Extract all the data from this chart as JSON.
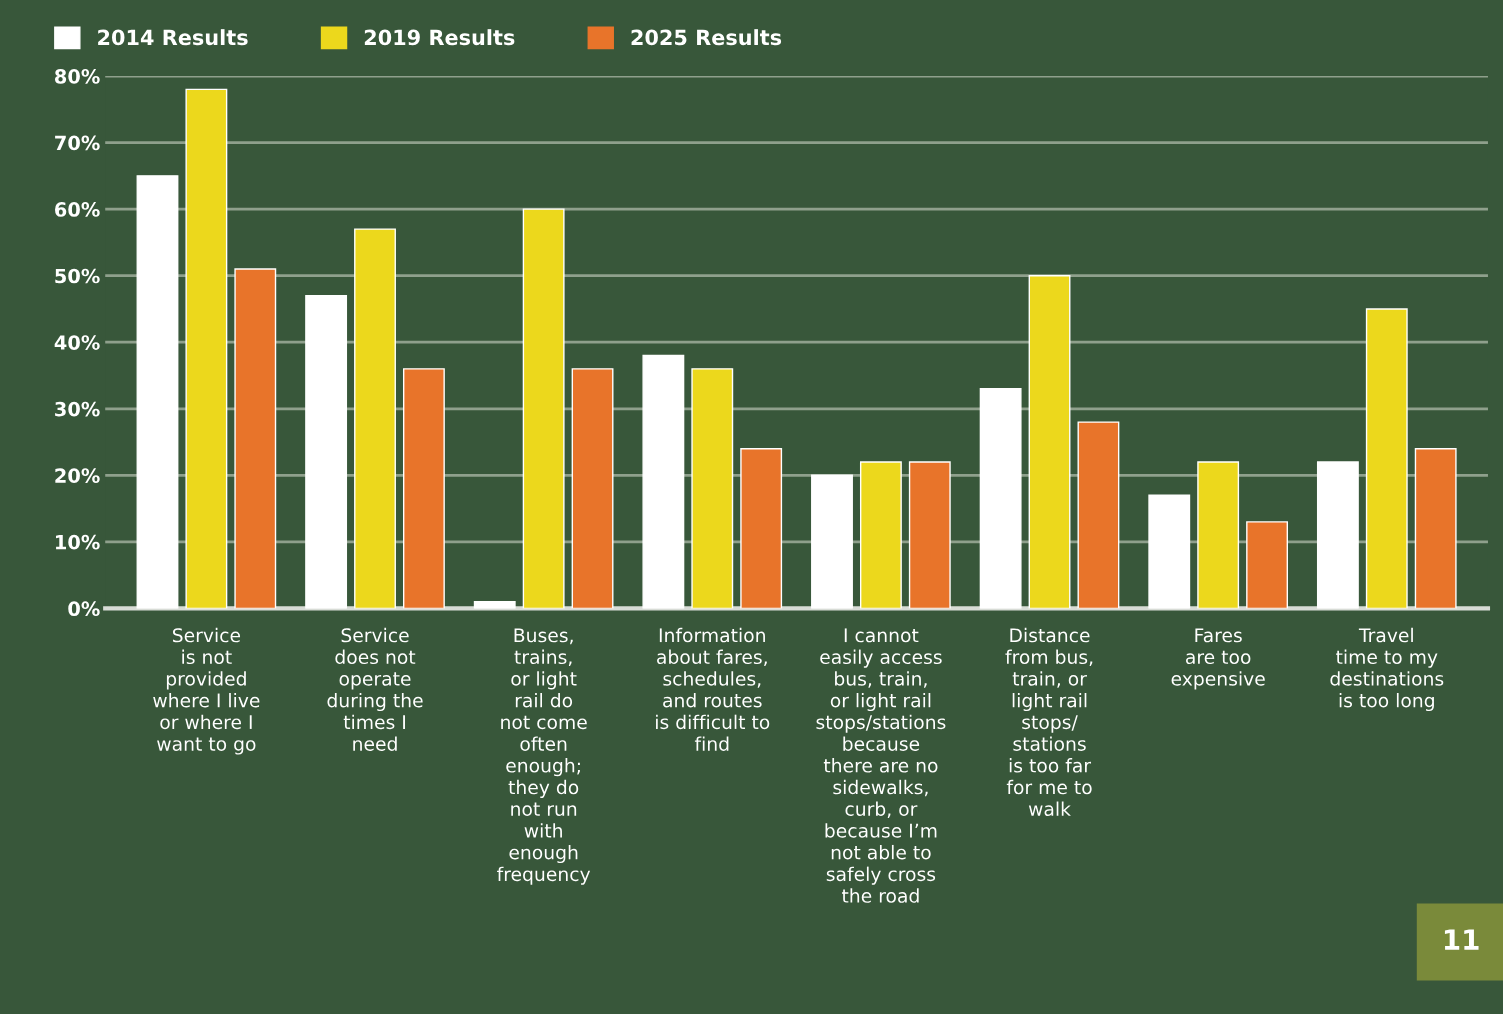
{
  "chart_data": {
    "type": "bar",
    "categories": [
      "Service\nis not\nprovided\nwhere I live\nor where I\nwant to go",
      "Service\ndoes not\noperate\nduring the\ntimes I\nneed",
      "Buses,\ntrains,\nor light\nrail do\nnot come\noften\nenough;\nthey do\nnot run\nwith\nenough\nfrequency",
      "Information\nabout fares,\nschedules,\nand routes\nis difficult to\nfind",
      "I cannot\neasily access\nbus, train,\nor light rail\nstops/stations\nbecause\nthere are no\nsidewalks,\ncurb, or\nbecause I’m\nnot able to\nsafely cross\nthe road",
      "Distance\nfrom bus,\ntrain, or\nlight rail\nstops/\nstations\nis too far\nfor me to\nwalk",
      "Fares\nare too\nexpensive",
      "Travel\ntime to my\ndestinations\nis too long"
    ],
    "series": [
      {
        "name": "2014 Results",
        "color": "#ffffff",
        "values": [
          65,
          47,
          1,
          38,
          20,
          33,
          17,
          22
        ]
      },
      {
        "name": "2019 Results",
        "color": "#ecd81c",
        "values": [
          78,
          57,
          60,
          36,
          22,
          50,
          22,
          45
        ]
      },
      {
        "name": "2025 Results",
        "color": "#e8742a",
        "values": [
          51,
          36,
          36,
          24,
          22,
          28,
          13,
          24
        ]
      }
    ],
    "ylim": [
      0,
      80
    ],
    "yticks": [
      {
        "value": 0,
        "label": "0%"
      },
      {
        "value": 10,
        "label": "10%"
      },
      {
        "value": 20,
        "label": "20%"
      },
      {
        "value": 30,
        "label": "30%"
      },
      {
        "value": 40,
        "label": "40%"
      },
      {
        "value": 50,
        "label": "50%"
      },
      {
        "value": 60,
        "label": "60%"
      },
      {
        "value": 70,
        "label": "70%"
      },
      {
        "value": 80,
        "label": "80%"
      }
    ],
    "grid": "y",
    "legend": "top left",
    "annotations": [
      "11"
    ]
  }
}
